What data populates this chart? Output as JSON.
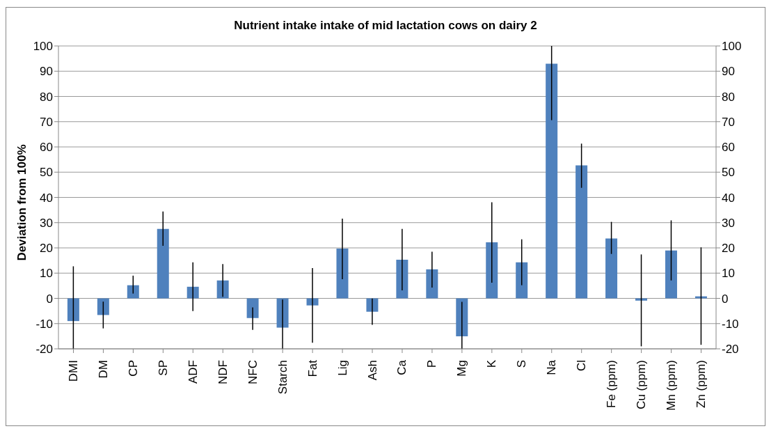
{
  "chart_data": {
    "type": "bar",
    "title": "Nutrient intake intake of mid lactation cows on dairy 2",
    "ylabel": "Deviation from 100%",
    "categories": [
      "DMI",
      "DM",
      "CP",
      "SP",
      "ADF",
      "NDF",
      "NFC",
      "Starch",
      "Fat",
      "Lig",
      "Ash",
      "Ca",
      "P",
      "Mg",
      "K",
      "S",
      "Na",
      "Cl",
      "Fe (ppm)",
      "Cu (ppm)",
      "Mn (ppm)",
      "Zn (ppm)"
    ],
    "values": [
      -9.0,
      -6.6,
      5.2,
      27.5,
      4.6,
      7.1,
      -7.8,
      -11.6,
      -2.8,
      19.7,
      -5.3,
      15.3,
      11.5,
      -15.0,
      22.2,
      14.3,
      93.0,
      52.7,
      23.7,
      -0.9,
      19.0,
      0.8
    ],
    "errors": [
      [
        -20,
        12.7
      ],
      [
        -11.9,
        -1.3
      ],
      [
        1.9,
        9.0
      ],
      [
        20.8,
        34.4
      ],
      [
        -5.0,
        14.3
      ],
      [
        0.6,
        13.6
      ],
      [
        -12.5,
        -3.6
      ],
      [
        -20,
        -0.5
      ],
      [
        -17.6,
        12.0
      ],
      [
        7.6,
        31.6
      ],
      [
        -10.5,
        -0.1
      ],
      [
        3.2,
        27.5
      ],
      [
        4.3,
        18.5
      ],
      [
        -20,
        -1.4
      ],
      [
        6.2,
        38.1
      ],
      [
        5.2,
        23.4
      ],
      [
        70.6,
        100
      ],
      [
        43.8,
        61.3
      ],
      [
        17.6,
        30.3
      ],
      [
        -19.0,
        17.4
      ],
      [
        7.1,
        30.9
      ],
      [
        -18.4,
        20.2
      ]
    ],
    "color": "#4f81bd",
    "ylim": [
      -20,
      100
    ],
    "yticks": [
      -20,
      -10,
      0,
      10,
      20,
      30,
      40,
      50,
      60,
      70,
      80,
      90,
      100
    ],
    "y2lim": [
      -20,
      100
    ],
    "y2ticks": [
      -20,
      -10,
      0,
      10,
      20,
      30,
      40,
      50,
      60,
      70,
      80,
      90,
      100
    ],
    "grid": "y",
    "legend": false
  }
}
